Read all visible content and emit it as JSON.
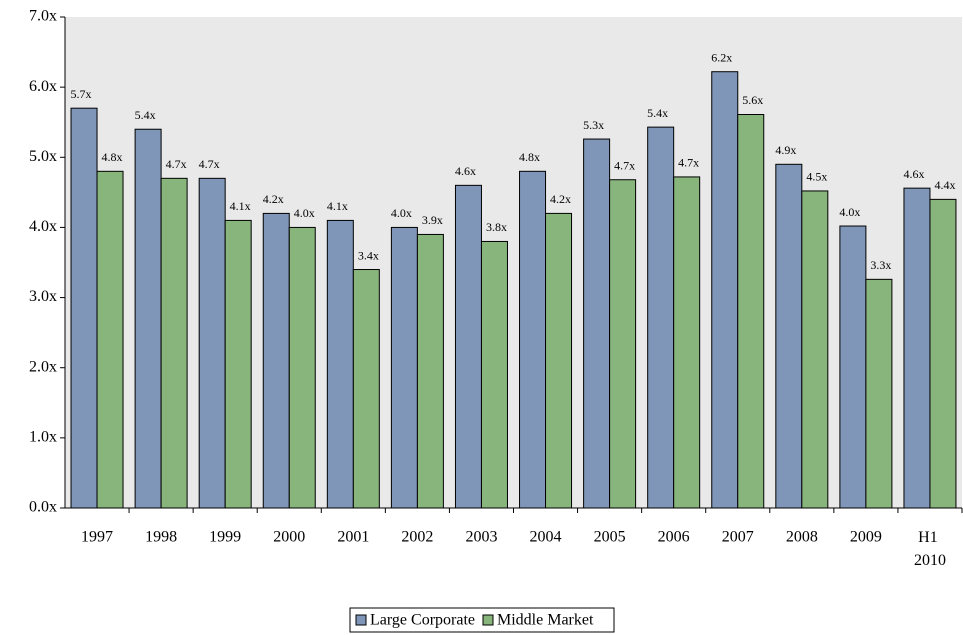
{
  "chart_data": {
    "type": "bar",
    "categories": [
      "1997",
      "1998",
      "1999",
      "2000",
      "2001",
      "2002",
      "2003",
      "2004",
      "2005",
      "2006",
      "2007",
      "2008",
      "2009",
      "H1 2010"
    ],
    "series": [
      {
        "name": "Large Corporate",
        "color": "#7f96b8",
        "values": [
          5.7,
          5.4,
          4.7,
          4.2,
          4.1,
          4.0,
          4.6,
          4.8,
          5.26,
          5.43,
          6.22,
          4.9,
          4.02,
          4.56
        ],
        "value_labels": [
          "5.7x",
          "5.4x",
          "4.7x",
          "4.2x",
          "4.1x",
          "4.0x",
          "4.6x",
          "4.8x",
          "5.3x",
          "5.4x",
          "6.2x",
          "4.9x",
          "4.0x",
          "4.6x"
        ]
      },
      {
        "name": "Middle Market",
        "color": "#88b57c",
        "values": [
          4.8,
          4.7,
          4.1,
          4.0,
          3.4,
          3.9,
          3.8,
          4.2,
          4.68,
          4.72,
          5.61,
          4.52,
          3.26,
          4.4
        ],
        "value_labels": [
          "4.8x",
          "4.7x",
          "4.1x",
          "4.0x",
          "3.4x",
          "3.9x",
          "3.8x",
          "4.2x",
          "4.7x",
          "4.7x",
          "5.6x",
          "4.5x",
          "3.3x",
          "4.4x"
        ]
      }
    ],
    "ylim": [
      0,
      7
    ],
    "yticks": [
      {
        "value": 0,
        "label": "0.0x"
      },
      {
        "value": 1,
        "label": "1.0x"
      },
      {
        "value": 2,
        "label": "2.0x"
      },
      {
        "value": 3,
        "label": "3.0x"
      },
      {
        "value": 4,
        "label": "4.0x"
      },
      {
        "value": 5,
        "label": "5.0x"
      },
      {
        "value": 6,
        "label": "6.0x"
      },
      {
        "value": 7,
        "label": "7.0x"
      }
    ],
    "grid": false,
    "legend": "bottom"
  }
}
